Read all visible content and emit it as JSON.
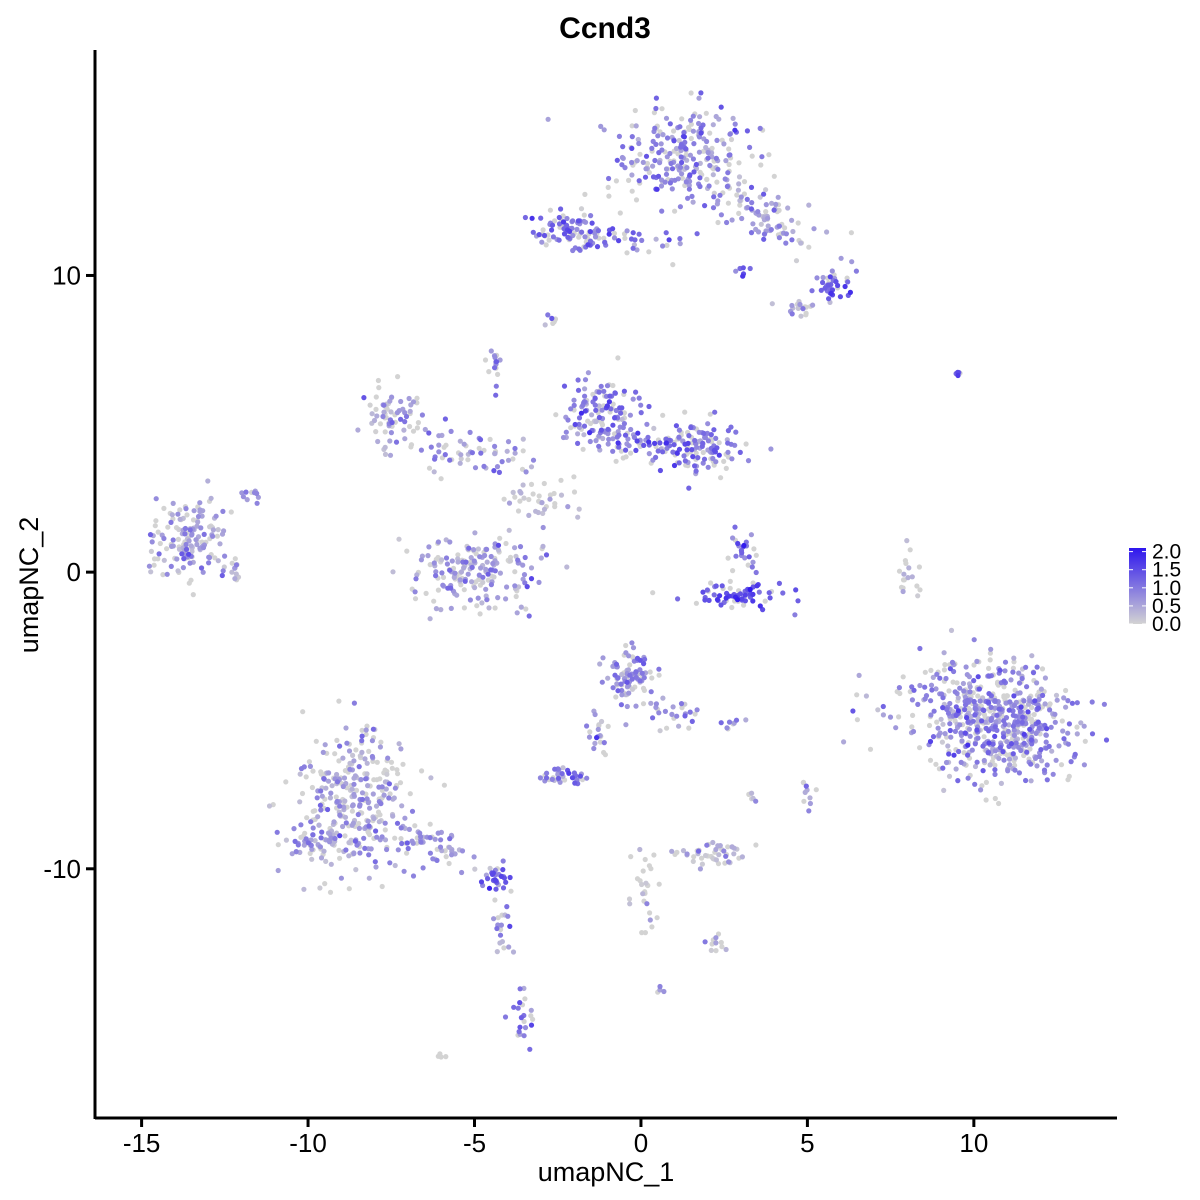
{
  "chart_data": {
    "type": "scatter",
    "title": "Ccnd3",
    "xlabel": "umapNC_1",
    "ylabel": "umapNC_2",
    "xlim": [
      -16.4,
      14.3
    ],
    "ylim": [
      -18.4,
      17.6
    ],
    "xticks": [
      -15,
      -10,
      -5,
      0,
      5,
      10
    ],
    "xtick_labels": [
      "-15",
      "-10",
      "-5",
      "0",
      "5",
      "10"
    ],
    "yticks": [
      -10,
      0,
      10
    ],
    "ytick_labels": [
      "-10",
      "0",
      "10"
    ],
    "grid": false,
    "legend_position": "right",
    "colorbar": {
      "min": 0,
      "max": 2.1,
      "ticks": [
        0.0,
        0.5,
        1.0,
        1.5,
        2.0
      ],
      "tick_labels": [
        "0.0",
        "0.5",
        "1.0",
        "1.5",
        "2.0"
      ],
      "low_color": "#d3d3d3",
      "high_color": "#2e16ee"
    },
    "clusters": [
      {
        "cx": 1.3,
        "cy": 14.0,
        "sx": 1.3,
        "sy": 1.2,
        "n": 240,
        "expr": 0.9,
        "rot": 0
      },
      {
        "cx": 3.6,
        "cy": 12.2,
        "sx": 1.7,
        "sy": 0.6,
        "n": 110,
        "expr": 0.6,
        "rot": -35
      },
      {
        "cx": -2.2,
        "cy": 11.5,
        "sx": 0.9,
        "sy": 0.4,
        "n": 80,
        "expr": 1.1,
        "rot": 0
      },
      {
        "cx": -0.6,
        "cy": 11.1,
        "sx": 1.6,
        "sy": 0.25,
        "n": 40,
        "expr": 0.9,
        "rot": 0
      },
      {
        "cx": 5.7,
        "cy": 9.6,
        "sx": 0.35,
        "sy": 0.35,
        "n": 35,
        "expr": 1.1,
        "rot": 0
      },
      {
        "cx": 4.9,
        "cy": 8.9,
        "sx": 0.5,
        "sy": 0.2,
        "n": 20,
        "expr": 0.4,
        "rot": 0
      },
      {
        "cx": 3.0,
        "cy": 10.1,
        "sx": 0.3,
        "sy": 0.2,
        "n": 6,
        "expr": 1.4,
        "rot": 0
      },
      {
        "cx": -2.7,
        "cy": 8.5,
        "sx": 0.15,
        "sy": 0.15,
        "n": 8,
        "expr": 0.9,
        "rot": 0
      },
      {
        "cx": -7.4,
        "cy": 5.3,
        "sx": 0.6,
        "sy": 0.7,
        "n": 70,
        "expr": 0.6,
        "rot": 0
      },
      {
        "cx": -4.4,
        "cy": 7.0,
        "sx": 0.2,
        "sy": 0.5,
        "n": 15,
        "expr": 0.9,
        "rot": 0
      },
      {
        "cx": -5.2,
        "cy": 4.0,
        "sx": 1.4,
        "sy": 0.5,
        "n": 60,
        "expr": 0.8,
        "rot": 0
      },
      {
        "cx": -1.2,
        "cy": 5.3,
        "sx": 0.8,
        "sy": 0.8,
        "n": 130,
        "expr": 1.0,
        "rot": 0
      },
      {
        "cx": 0.2,
        "cy": 4.3,
        "sx": 1.1,
        "sy": 0.5,
        "n": 70,
        "expr": 0.9,
        "rot": 0
      },
      {
        "cx": 1.9,
        "cy": 4.2,
        "sx": 0.7,
        "sy": 0.6,
        "n": 110,
        "expr": 1.0,
        "rot": 0
      },
      {
        "cx": -3.0,
        "cy": 2.4,
        "sx": 0.8,
        "sy": 0.6,
        "n": 40,
        "expr": 0.1,
        "rot": 0
      },
      {
        "cx": -5.0,
        "cy": 0.0,
        "sx": 1.5,
        "sy": 0.8,
        "n": 190,
        "expr": 0.6,
        "rot": 0
      },
      {
        "cx": -13.5,
        "cy": 1.2,
        "sx": 0.8,
        "sy": 0.9,
        "n": 150,
        "expr": 0.6,
        "rot": 0
      },
      {
        "cx": -12.2,
        "cy": 0.2,
        "sx": 0.3,
        "sy": 0.5,
        "n": 12,
        "expr": 0.2,
        "rot": 0
      },
      {
        "cx": -11.8,
        "cy": 2.6,
        "sx": 0.3,
        "sy": 0.3,
        "n": 10,
        "expr": 0.7,
        "rot": 0
      },
      {
        "cx": 3.1,
        "cy": 0.8,
        "sx": 0.4,
        "sy": 0.7,
        "n": 25,
        "expr": 0.9,
        "rot": 0
      },
      {
        "cx": 3.0,
        "cy": -0.8,
        "sx": 1.1,
        "sy": 0.3,
        "n": 70,
        "expr": 1.3,
        "rot": 0
      },
      {
        "cx": 8.0,
        "cy": 0.0,
        "sx": 0.2,
        "sy": 0.6,
        "n": 18,
        "expr": 0.0,
        "rot": 0
      },
      {
        "cx": 9.5,
        "cy": 6.7,
        "sx": 0.15,
        "sy": 0.05,
        "n": 5,
        "expr": 1.3,
        "rot": 0
      },
      {
        "cx": 10.5,
        "cy": -5.0,
        "sx": 1.6,
        "sy": 1.3,
        "n": 650,
        "expr": 0.8,
        "rot": -25
      },
      {
        "cx": -0.3,
        "cy": -3.5,
        "sx": 0.6,
        "sy": 0.6,
        "n": 90,
        "expr": 0.8,
        "rot": 0
      },
      {
        "cx": 0.9,
        "cy": -4.7,
        "sx": 0.5,
        "sy": 0.4,
        "n": 25,
        "expr": 0.7,
        "rot": 0
      },
      {
        "cx": -1.3,
        "cy": -5.5,
        "sx": 0.3,
        "sy": 0.6,
        "n": 20,
        "expr": 0.7,
        "rot": 0
      },
      {
        "cx": -2.3,
        "cy": -6.9,
        "sx": 0.5,
        "sy": 0.2,
        "n": 35,
        "expr": 1.0,
        "rot": 0
      },
      {
        "cx": 2.8,
        "cy": -5.1,
        "sx": 0.25,
        "sy": 0.1,
        "n": 8,
        "expr": 0.8,
        "rot": 0
      },
      {
        "cx": 2.1,
        "cy": -9.5,
        "sx": 0.9,
        "sy": 0.3,
        "n": 50,
        "expr": 0.3,
        "rot": 0
      },
      {
        "cx": 0.0,
        "cy": -10.8,
        "sx": 0.3,
        "sy": 0.8,
        "n": 25,
        "expr": 0.0,
        "rot": 0
      },
      {
        "cx": 2.3,
        "cy": -12.5,
        "sx": 0.2,
        "sy": 0.2,
        "n": 12,
        "expr": 0.3,
        "rot": 0
      },
      {
        "cx": 5.0,
        "cy": -7.5,
        "sx": 0.12,
        "sy": 0.4,
        "n": 10,
        "expr": 0.3,
        "rot": 0
      },
      {
        "cx": 3.3,
        "cy": -7.5,
        "sx": 0.15,
        "sy": 0.3,
        "n": 6,
        "expr": 0.0,
        "rot": 0
      },
      {
        "cx": -8.6,
        "cy": -7.6,
        "sx": 1.1,
        "sy": 1.6,
        "n": 300,
        "expr": 0.6,
        "rot": 0
      },
      {
        "cx": -9.7,
        "cy": -9.1,
        "sx": 0.6,
        "sy": 0.4,
        "n": 60,
        "expr": 0.7,
        "rot": 0
      },
      {
        "cx": -6.5,
        "cy": -9.1,
        "sx": 1.1,
        "sy": 0.35,
        "n": 60,
        "expr": 0.6,
        "rot": -25
      },
      {
        "cx": -4.3,
        "cy": -10.3,
        "sx": 0.4,
        "sy": 0.3,
        "n": 30,
        "expr": 1.1,
        "rot": 0
      },
      {
        "cx": -4.1,
        "cy": -12.0,
        "sx": 0.2,
        "sy": 0.8,
        "n": 20,
        "expr": 0.6,
        "rot": 0
      },
      {
        "cx": -3.6,
        "cy": -15.0,
        "sx": 0.2,
        "sy": 0.6,
        "n": 22,
        "expr": 0.9,
        "rot": 0
      },
      {
        "cx": -6.0,
        "cy": -16.3,
        "sx": 0.1,
        "sy": 0.1,
        "n": 4,
        "expr": 0.4,
        "rot": 0
      },
      {
        "cx": 0.6,
        "cy": -14.1,
        "sx": 0.1,
        "sy": 0.1,
        "n": 4,
        "expr": 0.4,
        "rot": 0
      }
    ]
  }
}
